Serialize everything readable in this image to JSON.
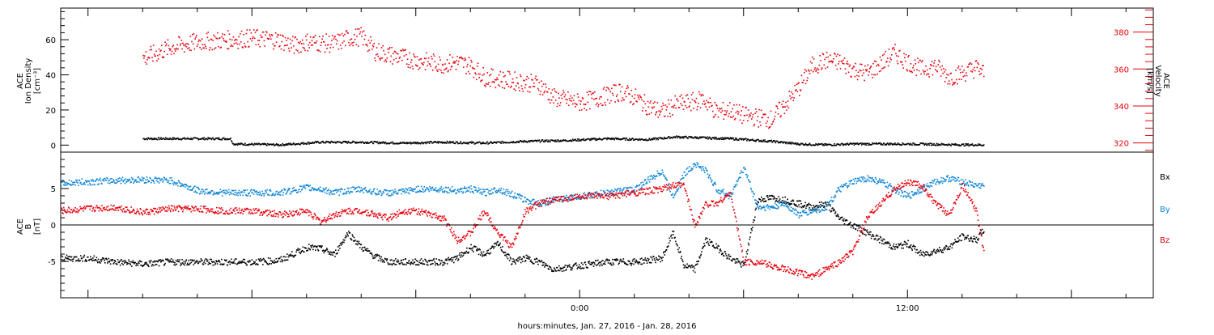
{
  "chart_data": [
    {
      "type": "scatter",
      "panel": "top",
      "ylabel_left": [
        "ACE",
        "Ion Density",
        "[cm⁻³]"
      ],
      "ylabel_right": [
        "ACE",
        "Velocity",
        "[km/s]"
      ],
      "y_left_ticks": [
        "0",
        "20",
        "40",
        "60"
      ],
      "y_left_lim": [
        -4,
        78
      ],
      "y_right_ticks": [
        "320",
        "340",
        "360",
        "380"
      ],
      "y_right_lim": [
        315,
        393
      ],
      "colors": {
        "density": "#000000",
        "velocity": "#e8000b"
      },
      "series": [
        {
          "role": "density",
          "axis": "left",
          "x": [
            -16,
            -12.8,
            -12.7,
            -11,
            -9.5,
            -8,
            -6.5,
            -5,
            -3.5,
            -2,
            -0.5,
            1,
            2.5,
            3.5,
            4.5,
            5.5,
            6.5,
            7,
            8,
            9,
            10,
            11,
            12,
            13,
            14,
            14.8
          ],
          "y": [
            4,
            4,
            1,
            0.5,
            2,
            2,
            1.5,
            2,
            1.5,
            2.5,
            3,
            4,
            3.5,
            5,
            4.5,
            4,
            3,
            2.5,
            1,
            0.5,
            1,
            1,
            1,
            0.8,
            0.5,
            0.5
          ]
        },
        {
          "role": "velocity",
          "axis": "right",
          "x": [
            -16,
            -15,
            -14,
            -13,
            -12,
            -11,
            -10.5,
            -10,
            -9,
            -8.5,
            -8,
            -7.5,
            -7,
            -6,
            -5,
            -4.5,
            -4,
            -3.5,
            -3,
            -2,
            -1.5,
            -1,
            0,
            1,
            1.5,
            2,
            2.5,
            3,
            3.5,
            4,
            4.5,
            5,
            5.5,
            6,
            6.5,
            7,
            7.5,
            8,
            8.5,
            9,
            9.5,
            10,
            10.5,
            11,
            11.5,
            12,
            12.5,
            13,
            13.5,
            14,
            14.5,
            14.8
          ],
          "y": [
            366,
            372,
            375,
            376,
            377,
            376,
            373,
            375,
            374,
            377,
            378,
            370,
            368,
            365,
            363,
            364,
            362,
            356,
            355,
            353,
            352,
            345,
            342,
            346,
            348,
            345,
            340,
            337,
            341,
            342,
            344,
            337,
            338,
            335,
            334,
            333,
            341,
            350,
            362,
            365,
            364,
            360,
            358,
            363,
            369,
            364,
            360,
            362,
            356,
            358,
            361,
            358
          ]
        }
      ]
    },
    {
      "type": "scatter",
      "panel": "bottom",
      "ylabel": [
        "ACE",
        "B",
        "[nT]"
      ],
      "y_ticks": [
        "-5",
        "0",
        "5"
      ],
      "ylim": [
        -10,
        10
      ],
      "zero_line": true,
      "xlabel": "hours:minutes, Jan. 27, 2016 - Jan. 28, 2016",
      "x_ticks": [
        {
          "x": 0,
          "label": "0:00"
        },
        {
          "x": 12,
          "label": "12:00"
        }
      ],
      "xlim": [
        -19,
        21
      ],
      "colors": {
        "Bx": "#000000",
        "By": "#0a84d6",
        "Bz": "#e8000b"
      },
      "series": [
        {
          "name": "Bx",
          "x": [
            -19,
            -18,
            -17,
            -16,
            -15,
            -14,
            -13,
            -12,
            -11,
            -10,
            -9.5,
            -9,
            -8.5,
            -8,
            -7.5,
            -7,
            -6.5,
            -6,
            -5,
            -4.5,
            -4,
            -3.5,
            -3,
            -2.5,
            -2,
            -1.5,
            -1,
            0,
            1,
            2,
            3,
            3.4,
            3.8,
            4.2,
            4.6,
            5,
            5.5,
            6,
            6.5,
            7,
            7.5,
            8,
            8.5,
            9,
            9.5,
            10,
            10.5,
            11,
            11.5,
            12,
            12.5,
            13,
            13.5,
            14,
            14.5,
            14.8
          ],
          "y": [
            -4.5,
            -4.5,
            -5,
            -5.3,
            -5,
            -5,
            -5,
            -5,
            -4.8,
            -3,
            -3.2,
            -4,
            -1,
            -3,
            -4.3,
            -5,
            -5,
            -5,
            -5,
            -4.5,
            -3,
            -4,
            -2.5,
            -5,
            -4.5,
            -5,
            -6,
            -5.5,
            -5,
            -5,
            -4.5,
            -1,
            -5.5,
            -6,
            -2,
            -3,
            -4.5,
            -5.5,
            3.5,
            3.8,
            3.5,
            3,
            2.5,
            3,
            1,
            0,
            -1,
            -2,
            -3,
            -2.5,
            -4,
            -3.5,
            -3,
            -1.5,
            -2,
            -0.5
          ]
        },
        {
          "name": "By",
          "x": [
            -19,
            -18,
            -17,
            -16,
            -15,
            -14,
            -13,
            -12,
            -11,
            -10,
            -9.5,
            -9,
            -8.5,
            -8,
            -7.5,
            -7,
            -6.5,
            -6,
            -5,
            -4.5,
            -4,
            -3.5,
            -3,
            -2.5,
            -2,
            -1.5,
            -1,
            0,
            1,
            2,
            3,
            3.4,
            3.8,
            4.2,
            4.6,
            5,
            5.5,
            6,
            6.5,
            7,
            7.5,
            8,
            8.5,
            9,
            9.5,
            10,
            10.5,
            11,
            11.5,
            12,
            12.5,
            13,
            13.5,
            14,
            14.5,
            14.8
          ],
          "y": [
            5.8,
            6,
            6.2,
            6.3,
            6.2,
            4.8,
            4.5,
            4.5,
            4.5,
            5.2,
            5,
            4.5,
            4.8,
            5,
            4.6,
            4.5,
            4.6,
            5,
            5,
            4.8,
            5,
            4.5,
            5,
            4.3,
            3.5,
            3,
            3.5,
            4,
            4.5,
            5,
            7.5,
            4,
            7,
            8.5,
            7.5,
            5,
            4,
            8,
            2.5,
            2.5,
            3,
            1.5,
            2,
            2.5,
            5,
            6,
            6.5,
            6,
            5,
            4,
            5,
            6,
            6.5,
            6,
            5.5,
            5.5
          ]
        },
        {
          "name": "Bz",
          "x": [
            -19,
            -18,
            -17,
            -16,
            -15,
            -14,
            -13,
            -12,
            -11,
            -10,
            -9.5,
            -9,
            -8.5,
            -8,
            -7.5,
            -7,
            -6.5,
            -6,
            -5,
            -4.5,
            -4,
            -3.5,
            -3,
            -2.5,
            -2,
            -1.5,
            -1,
            0,
            1,
            2,
            3,
            3.4,
            3.8,
            4.2,
            4.6,
            5,
            5.5,
            6,
            6.5,
            7,
            7.5,
            8,
            8.5,
            9,
            9.5,
            10,
            10.5,
            11,
            11.5,
            12,
            12.5,
            13,
            13.5,
            14,
            14.5,
            14.8
          ],
          "y": [
            2,
            2.3,
            2.5,
            1.8,
            2.3,
            2.3,
            2,
            2,
            1.5,
            2,
            0.5,
            1.5,
            2,
            2,
            1.5,
            1,
            2,
            2,
            1,
            -2,
            -1,
            2,
            -1,
            -3,
            2,
            3,
            3.5,
            4,
            4,
            4.5,
            5,
            5.5,
            5.5,
            0,
            3,
            3,
            4.5,
            -5,
            -5,
            -5.5,
            -6,
            -6.5,
            -7,
            -6,
            -5,
            -3.5,
            1,
            3,
            5,
            6,
            5.5,
            3,
            1.5,
            5.5,
            2,
            -4
          ]
        }
      ]
    }
  ]
}
